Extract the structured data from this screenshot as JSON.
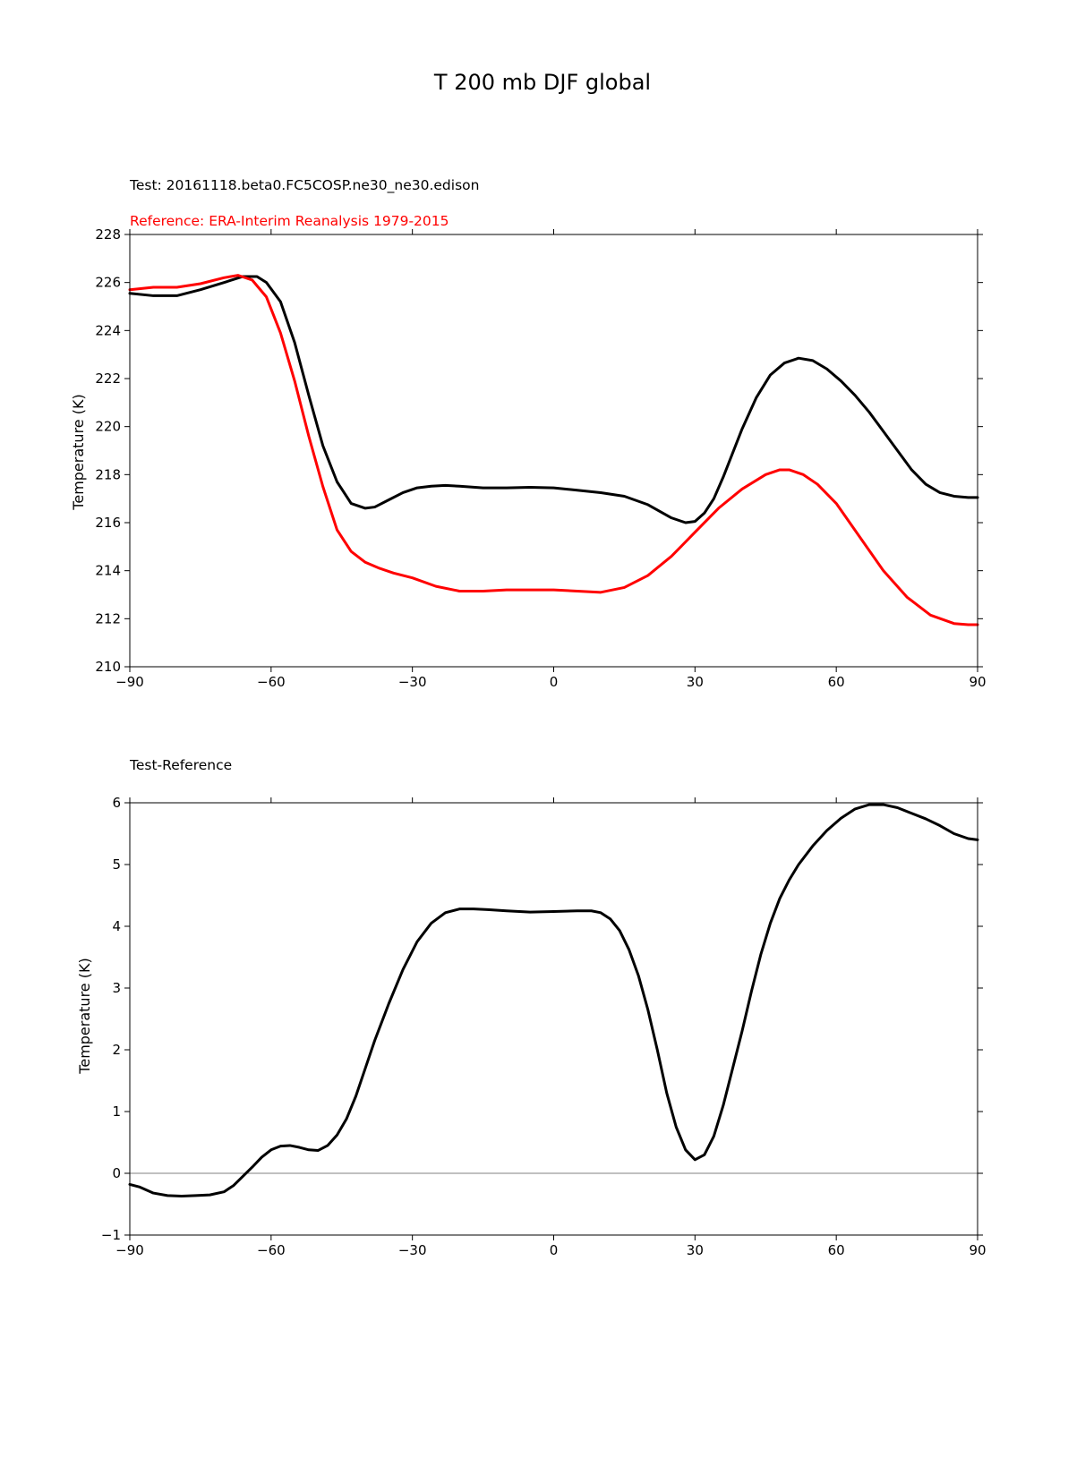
{
  "figure": {
    "title": "T 200 mb DJF global"
  },
  "chart_data": [
    {
      "type": "line",
      "test_label": "Test: 20161118.beta0.FC5COSP.ne30_ne30.edison",
      "reference_label": "Reference: ERA-Interim Reanalysis 1979-2015",
      "xlabel": "",
      "ylabel": "Temperature (K)",
      "xlim": [
        -90,
        90
      ],
      "ylim": [
        210,
        228
      ],
      "xticks": [
        -90,
        -60,
        -30,
        0,
        30,
        60,
        90
      ],
      "xtick_labels": [
        "−90",
        "−60",
        "−30",
        "0",
        "30",
        "60",
        "90"
      ],
      "yticks": [
        210,
        212,
        214,
        216,
        218,
        220,
        222,
        224,
        226,
        228
      ],
      "ytick_labels": [
        "210",
        "212",
        "214",
        "216",
        "218",
        "220",
        "222",
        "224",
        "226",
        "228"
      ],
      "series": [
        {
          "name": "Test",
          "color": "#000000",
          "x": [
            -90,
            -85,
            -80,
            -75,
            -70,
            -66,
            -63,
            -61,
            -58,
            -55,
            -52,
            -49,
            -46,
            -43,
            -40,
            -38,
            -35,
            -32,
            -29,
            -26,
            -23,
            -20,
            -15,
            -10,
            -5,
            0,
            5,
            10,
            15,
            20,
            25,
            28,
            30,
            32,
            34,
            36,
            38,
            40,
            43,
            46,
            49,
            52,
            55,
            58,
            61,
            64,
            67,
            70,
            73,
            76,
            79,
            82,
            85,
            88,
            90
          ],
          "values": [
            225.55,
            225.45,
            225.45,
            225.7,
            226.0,
            226.25,
            226.25,
            226.0,
            225.2,
            223.5,
            221.3,
            219.2,
            217.7,
            216.8,
            216.6,
            216.65,
            216.95,
            217.25,
            217.45,
            217.52,
            217.55,
            217.52,
            217.45,
            217.45,
            217.47,
            217.45,
            217.35,
            217.25,
            217.1,
            216.75,
            216.2,
            216.0,
            216.05,
            216.4,
            217.0,
            217.9,
            218.9,
            219.9,
            221.2,
            222.15,
            222.65,
            222.85,
            222.75,
            222.4,
            221.9,
            221.3,
            220.6,
            219.8,
            219.0,
            218.2,
            217.6,
            217.25,
            217.1,
            217.05,
            217.05
          ]
        },
        {
          "name": "Reference",
          "color": "#ff0000",
          "x": [
            -90,
            -85,
            -80,
            -75,
            -70,
            -67,
            -64,
            -61,
            -58,
            -55,
            -52,
            -49,
            -46,
            -43,
            -40,
            -37,
            -34,
            -30,
            -25,
            -20,
            -15,
            -10,
            -5,
            0,
            5,
            10,
            15,
            20,
            25,
            30,
            35,
            40,
            45,
            48,
            50,
            53,
            56,
            60,
            65,
            70,
            75,
            80,
            85,
            88,
            90
          ],
          "values": [
            225.7,
            225.8,
            225.8,
            225.95,
            226.2,
            226.3,
            226.1,
            225.4,
            223.9,
            221.9,
            219.6,
            217.5,
            215.7,
            214.8,
            214.35,
            214.1,
            213.9,
            213.7,
            213.35,
            213.15,
            213.15,
            213.2,
            213.2,
            213.2,
            213.15,
            213.1,
            213.3,
            213.8,
            214.6,
            215.6,
            216.6,
            217.4,
            218.0,
            218.2,
            218.2,
            218.0,
            217.6,
            216.8,
            215.4,
            214.0,
            212.9,
            212.15,
            211.8,
            211.75,
            211.75
          ]
        }
      ]
    },
    {
      "type": "line",
      "subtitle": "Test-Reference",
      "xlabel": "",
      "ylabel": "Temperature (K)",
      "xlim": [
        -90,
        90
      ],
      "ylim": [
        -1,
        6
      ],
      "zero_line": 0,
      "xticks": [
        -90,
        -60,
        -30,
        0,
        30,
        60,
        90
      ],
      "xtick_labels": [
        "−90",
        "−60",
        "−30",
        "0",
        "30",
        "60",
        "90"
      ],
      "yticks": [
        -1,
        0,
        1,
        2,
        3,
        4,
        5,
        6
      ],
      "ytick_labels": [
        "−1",
        "0",
        "1",
        "2",
        "3",
        "4",
        "5",
        "6"
      ],
      "series": [
        {
          "name": "Test-Reference",
          "color": "#000000",
          "x": [
            -90,
            -88,
            -85,
            -82,
            -79,
            -76,
            -73,
            -70,
            -68,
            -66,
            -64,
            -62,
            -60,
            -58,
            -56,
            -54,
            -52,
            -50,
            -48,
            -46,
            -44,
            -42,
            -40,
            -38,
            -35,
            -32,
            -29,
            -26,
            -23,
            -20,
            -17,
            -14,
            -10,
            -5,
            0,
            5,
            8,
            10,
            12,
            14,
            16,
            18,
            20,
            22,
            24,
            26,
            28,
            30,
            32,
            34,
            36,
            38,
            40,
            42,
            44,
            46,
            48,
            50,
            52,
            55,
            58,
            61,
            64,
            67,
            70,
            73,
            76,
            79,
            82,
            85,
            88,
            90
          ],
          "values": [
            -0.18,
            -0.22,
            -0.32,
            -0.36,
            -0.37,
            -0.36,
            -0.35,
            -0.3,
            -0.2,
            -0.05,
            0.1,
            0.26,
            0.38,
            0.44,
            0.45,
            0.42,
            0.38,
            0.37,
            0.45,
            0.62,
            0.88,
            1.25,
            1.7,
            2.15,
            2.75,
            3.3,
            3.75,
            4.05,
            4.22,
            4.28,
            4.28,
            4.27,
            4.25,
            4.23,
            4.24,
            4.25,
            4.25,
            4.22,
            4.12,
            3.93,
            3.62,
            3.2,
            2.65,
            2.0,
            1.3,
            0.75,
            0.38,
            0.22,
            0.3,
            0.6,
            1.1,
            1.7,
            2.3,
            2.95,
            3.55,
            4.05,
            4.45,
            4.75,
            5.0,
            5.3,
            5.55,
            5.75,
            5.9,
            5.97,
            5.97,
            5.92,
            5.83,
            5.74,
            5.63,
            5.5,
            5.42,
            5.4
          ]
        }
      ]
    }
  ]
}
